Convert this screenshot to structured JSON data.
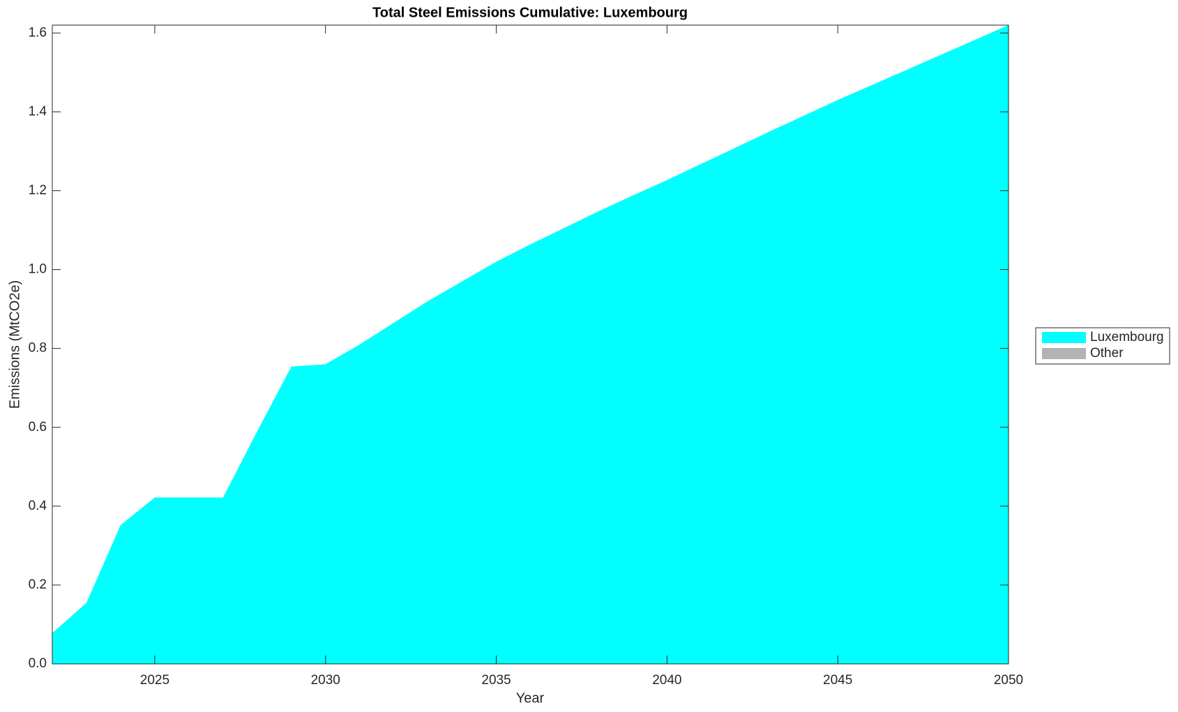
{
  "chart_data": {
    "type": "stacked_area",
    "title": "Total Steel Emissions Cumulative: Luxembourg",
    "xlabel": "Year",
    "ylabel": "Emissions (MtCO2e)",
    "x": [
      2022,
      2023,
      2024,
      2025,
      2026,
      2027,
      2028,
      2029,
      2030,
      2031,
      2032,
      2033,
      2034,
      2035,
      2036,
      2037,
      2038,
      2039,
      2040,
      2041,
      2042,
      2043,
      2044,
      2045,
      2046,
      2047,
      2048,
      2049,
      2050
    ],
    "series": [
      {
        "name": "Luxembourg",
        "color": "#00ffff",
        "values": [
          0.078,
          0.155,
          0.352,
          0.422,
          0.422,
          0.422,
          0.59,
          0.754,
          0.76,
          0.81,
          0.865,
          0.92,
          0.97,
          1.02,
          1.064,
          1.106,
          1.148,
          1.188,
          1.227,
          1.268,
          1.309,
          1.35,
          1.39,
          1.43,
          1.468,
          1.506,
          1.544,
          1.582,
          1.62
        ]
      },
      {
        "name": "Other",
        "color": "#b3b3b3",
        "values": [
          0,
          0,
          0,
          0,
          0,
          0,
          0,
          0,
          0,
          0,
          0,
          0,
          0,
          0,
          0,
          0,
          0,
          0,
          0,
          0,
          0,
          0,
          0,
          0,
          0,
          0,
          0,
          0,
          0
        ]
      }
    ],
    "xlim": [
      2022,
      2050
    ],
    "xticks": [
      2025,
      2030,
      2035,
      2040,
      2045,
      2050
    ],
    "ylim": [
      0,
      1.62
    ],
    "yticks": [
      {
        "value": 0,
        "label": "0.0"
      },
      0.2,
      0.4,
      0.6,
      0.8,
      {
        "value": 1,
        "label": "1.0"
      },
      1.2,
      1.4,
      1.6
    ],
    "legend": "outside-right"
  }
}
